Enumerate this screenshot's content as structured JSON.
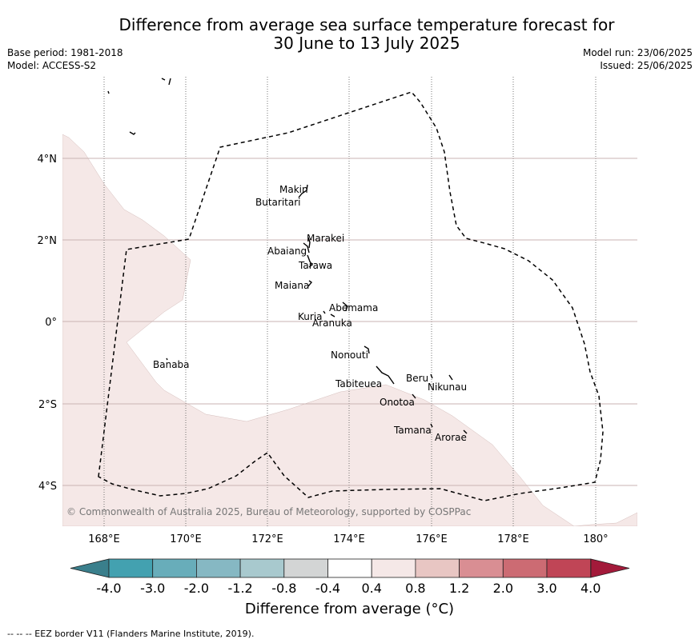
{
  "title_line1": "Difference from average sea surface temperature forecast for",
  "title_line2": "30 June to 13 July 2025",
  "base_period": "Base period: 1981-2018",
  "model": "Model: ACCESS-S2",
  "model_run": "Model run: 23/06/2025",
  "issued": "Issued: 25/06/2025",
  "copyright": "© Commonwealth of Australia 2025, Bureau of Meteorology, supported by COSPPac",
  "lon_ticks": [
    "168°E",
    "170°E",
    "172°E",
    "174°E",
    "176°E",
    "178°E",
    "180°"
  ],
  "lat_ticks": [
    "4°N",
    "2°N",
    "0°",
    "2°S",
    "4°S"
  ],
  "places": [
    {
      "name": "Makin"
    },
    {
      "name": "Butaritari"
    },
    {
      "name": "Marakei"
    },
    {
      "name": "Abaiang"
    },
    {
      "name": "Tarawa"
    },
    {
      "name": "Maiana"
    },
    {
      "name": "Abemama"
    },
    {
      "name": "Kuria"
    },
    {
      "name": "Aranuka"
    },
    {
      "name": "Nonouti"
    },
    {
      "name": "Banaba"
    },
    {
      "name": "Beru"
    },
    {
      "name": "Tabiteuea"
    },
    {
      "name": "Nikunau"
    },
    {
      "name": "Onotoa"
    },
    {
      "name": "Tamana"
    },
    {
      "name": "Arorae"
    }
  ],
  "colorbar": {
    "labels": [
      "-4.0",
      "-3.0",
      "-2.0",
      "-1.2",
      "-0.8",
      "-0.4",
      "0.4",
      "0.8",
      "1.2",
      "2.0",
      "3.0",
      "4.0"
    ],
    "colors": [
      "#43a1b0",
      "#68adba",
      "#86b8c3",
      "#a8c9ce",
      "#d3d5d5",
      "#ffffff",
      "#f5e8e7",
      "#e8c6c3",
      "#d98e93",
      "#cc6b73",
      "#c04556"
    ],
    "under_color": "#3a7f8c",
    "over_color": "#a31a3a",
    "title": "Difference from average (°C)"
  },
  "footnote": "-- -- -- EEZ border V11 (Flanders Marine Institute, 2019)."
}
